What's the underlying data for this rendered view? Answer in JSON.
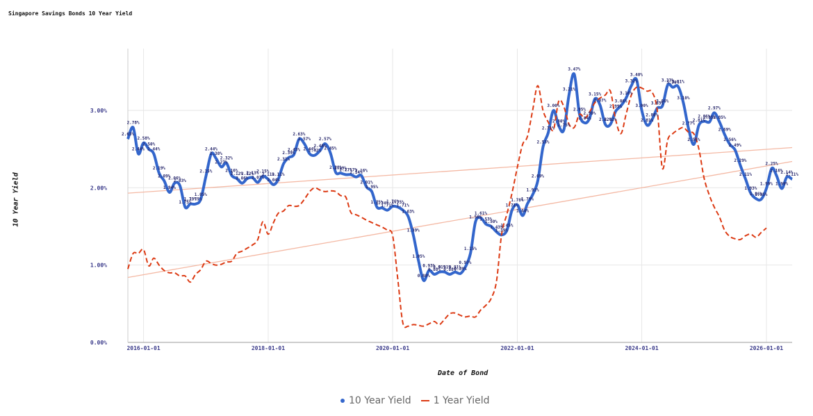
{
  "chart_data": {
    "type": "line",
    "title": "Singapore Savings Bonds 10 Year Yield",
    "xlabel": "Date of Bond",
    "ylabel": "10 Year Yield",
    "x_ticks": [
      "2016-01-01",
      "2018-01-01",
      "2020-01-01",
      "2022-01-01",
      "2024-01-01",
      "2026-01-01"
    ],
    "y_ticks": [
      "0.00%",
      "1.00%",
      "2.00%",
      "3.00%"
    ],
    "ylim": [
      0,
      3.8
    ],
    "xlim": [
      "2015-10-01",
      "2026-06-01"
    ],
    "grid": true,
    "legend_position": "bottom",
    "colors": {
      "ten_year": "#3366cc",
      "one_year": "#dc3912",
      "trend": "#f4b8a3"
    },
    "series": [
      {
        "name": "10 Year Yield",
        "style": "solid",
        "labels": true,
        "points": [
          [
            "2015-10-01",
            2.63
          ],
          [
            "2015-11-01",
            2.78
          ],
          [
            "2015-12-01",
            2.44
          ],
          [
            "2016-01-01",
            2.58
          ],
          [
            "2016-02-01",
            2.5
          ],
          [
            "2016-03-01",
            2.44
          ],
          [
            "2016-04-01",
            2.19
          ],
          [
            "2016-05-01",
            2.09
          ],
          [
            "2016-06-01",
            1.94
          ],
          [
            "2016-07-01",
            2.06
          ],
          [
            "2016-08-01",
            2.03
          ],
          [
            "2016-09-01",
            1.75
          ],
          [
            "2016-10-01",
            1.79
          ],
          [
            "2016-11-01",
            1.79
          ],
          [
            "2016-12-01",
            1.85
          ],
          [
            "2017-01-01",
            2.15
          ],
          [
            "2017-02-01",
            2.44
          ],
          [
            "2017-03-01",
            2.38
          ],
          [
            "2017-04-01",
            2.27
          ],
          [
            "2017-05-01",
            2.32
          ],
          [
            "2017-06-01",
            2.16
          ],
          [
            "2017-07-01",
            2.12
          ],
          [
            "2017-08-01",
            2.06
          ],
          [
            "2017-09-01",
            2.12
          ],
          [
            "2017-10-01",
            2.13
          ],
          [
            "2017-11-01",
            2.07
          ],
          [
            "2017-12-01",
            2.15
          ],
          [
            "2018-01-01",
            2.11
          ],
          [
            "2018-02-01",
            2.04
          ],
          [
            "2018-03-01",
            2.11
          ],
          [
            "2018-04-01",
            2.31
          ],
          [
            "2018-05-01",
            2.39
          ],
          [
            "2018-06-01",
            2.43
          ],
          [
            "2018-07-01",
            2.63
          ],
          [
            "2018-08-01",
            2.57
          ],
          [
            "2018-09-01",
            2.44
          ],
          [
            "2018-10-01",
            2.42
          ],
          [
            "2018-11-01",
            2.48
          ],
          [
            "2018-12-01",
            2.57
          ],
          [
            "2019-01-01",
            2.45
          ],
          [
            "2019-02-01",
            2.2
          ],
          [
            "2019-03-01",
            2.19
          ],
          [
            "2019-04-01",
            2.17
          ],
          [
            "2019-05-01",
            2.17
          ],
          [
            "2019-06-01",
            2.14
          ],
          [
            "2019-07-01",
            2.16
          ],
          [
            "2019-08-01",
            2.01
          ],
          [
            "2019-09-01",
            1.95
          ],
          [
            "2019-10-01",
            1.75
          ],
          [
            "2019-11-01",
            1.74
          ],
          [
            "2019-12-01",
            1.71
          ],
          [
            "2020-01-01",
            1.76
          ],
          [
            "2020-02-01",
            1.75
          ],
          [
            "2020-03-01",
            1.71
          ],
          [
            "2020-04-01",
            1.63
          ],
          [
            "2020-05-01",
            1.39
          ],
          [
            "2020-06-01",
            1.05
          ],
          [
            "2020-07-01",
            0.8
          ],
          [
            "2020-08-01",
            0.93
          ],
          [
            "2020-09-01",
            0.88
          ],
          [
            "2020-10-01",
            0.91
          ],
          [
            "2020-11-01",
            0.91
          ],
          [
            "2020-12-01",
            0.88
          ],
          [
            "2021-01-01",
            0.91
          ],
          [
            "2021-02-01",
            0.89
          ],
          [
            "2021-03-01",
            0.97
          ],
          [
            "2021-04-01",
            1.15
          ],
          [
            "2021-05-01",
            1.56
          ],
          [
            "2021-06-01",
            1.61
          ],
          [
            "2021-07-01",
            1.53
          ],
          [
            "2021-08-01",
            1.5
          ],
          [
            "2021-09-01",
            1.43
          ],
          [
            "2021-10-01",
            1.39
          ],
          [
            "2021-11-01",
            1.45
          ],
          [
            "2021-12-01",
            1.71
          ],
          [
            "2022-01-01",
            1.78
          ],
          [
            "2022-02-01",
            1.64
          ],
          [
            "2022-03-01",
            1.79
          ],
          [
            "2022-04-01",
            1.91
          ],
          [
            "2022-05-01",
            2.09
          ],
          [
            "2022-06-01",
            2.53
          ],
          [
            "2022-07-01",
            2.71
          ],
          [
            "2022-08-01",
            3.0
          ],
          [
            "2022-09-01",
            2.8
          ],
          [
            "2022-10-01",
            2.75
          ],
          [
            "2022-11-01",
            3.21
          ],
          [
            "2022-12-01",
            3.47
          ],
          [
            "2023-01-01",
            2.95
          ],
          [
            "2023-02-01",
            2.84
          ],
          [
            "2023-03-01",
            2.9
          ],
          [
            "2023-04-01",
            3.15
          ],
          [
            "2023-05-01",
            3.07
          ],
          [
            "2023-06-01",
            2.82
          ],
          [
            "2023-07-01",
            2.82
          ],
          [
            "2023-08-01",
            2.99
          ],
          [
            "2023-09-01",
            3.06
          ],
          [
            "2023-10-01",
            3.16
          ],
          [
            "2023-11-01",
            3.32
          ],
          [
            "2023-12-01",
            3.4
          ],
          [
            "2024-01-01",
            3.0
          ],
          [
            "2024-02-01",
            2.81
          ],
          [
            "2024-03-01",
            2.88
          ],
          [
            "2024-04-01",
            3.03
          ],
          [
            "2024-05-01",
            3.06
          ],
          [
            "2024-06-01",
            3.33
          ],
          [
            "2024-07-01",
            3.3
          ],
          [
            "2024-08-01",
            3.31
          ],
          [
            "2024-09-01",
            3.1
          ],
          [
            "2024-10-01",
            2.77
          ],
          [
            "2024-11-01",
            2.56
          ],
          [
            "2024-12-01",
            2.81
          ],
          [
            "2025-01-01",
            2.86
          ],
          [
            "2025-02-01",
            2.85
          ],
          [
            "2025-03-01",
            2.97
          ],
          [
            "2025-04-01",
            2.85
          ],
          [
            "2025-05-01",
            2.69
          ],
          [
            "2025-06-01",
            2.56
          ],
          [
            "2025-07-01",
            2.49
          ],
          [
            "2025-08-01",
            2.29
          ],
          [
            "2025-09-01",
            2.11
          ],
          [
            "2025-10-01",
            1.93
          ],
          [
            "2025-11-01",
            1.86
          ],
          [
            "2025-12-01",
            1.85
          ],
          [
            "2026-01-01",
            1.99
          ],
          [
            "2026-02-01",
            2.25
          ],
          [
            "2026-03-01",
            2.16
          ],
          [
            "2026-04-01",
            1.99
          ],
          [
            "2026-05-01",
            2.14
          ],
          [
            "2026-06-01",
            2.11
          ]
        ]
      },
      {
        "name": "1 Year Yield",
        "style": "dashed",
        "labels": false,
        "points": [
          [
            "2015-10-01",
            0.95
          ],
          [
            "2015-11-01",
            1.15
          ],
          [
            "2015-12-01",
            1.15
          ],
          [
            "2016-01-01",
            1.2
          ],
          [
            "2016-02-01",
            0.99
          ],
          [
            "2016-03-01",
            1.09
          ],
          [
            "2016-04-01",
            1.0
          ],
          [
            "2016-05-01",
            0.93
          ],
          [
            "2016-06-01",
            0.9
          ],
          [
            "2016-07-01",
            0.9
          ],
          [
            "2016-08-01",
            0.86
          ],
          [
            "2016-09-01",
            0.86
          ],
          [
            "2016-10-01",
            0.78
          ],
          [
            "2016-11-01",
            0.88
          ],
          [
            "2016-12-01",
            0.94
          ],
          [
            "2017-01-01",
            1.05
          ],
          [
            "2017-02-01",
            1.02
          ],
          [
            "2017-03-01",
            1.0
          ],
          [
            "2017-04-01",
            1.01
          ],
          [
            "2017-05-01",
            1.04
          ],
          [
            "2017-06-01",
            1.05
          ],
          [
            "2017-07-01",
            1.15
          ],
          [
            "2017-08-01",
            1.18
          ],
          [
            "2017-09-01",
            1.22
          ],
          [
            "2017-10-01",
            1.26
          ],
          [
            "2017-11-01",
            1.33
          ],
          [
            "2017-12-01",
            1.56
          ],
          [
            "2018-01-01",
            1.4
          ],
          [
            "2018-02-01",
            1.55
          ],
          [
            "2018-03-01",
            1.67
          ],
          [
            "2018-04-01",
            1.7
          ],
          [
            "2018-05-01",
            1.77
          ],
          [
            "2018-06-01",
            1.76
          ],
          [
            "2018-07-01",
            1.77
          ],
          [
            "2018-08-01",
            1.85
          ],
          [
            "2018-09-01",
            1.95
          ],
          [
            "2018-10-01",
            2.0
          ],
          [
            "2018-11-01",
            1.97
          ],
          [
            "2018-12-01",
            1.95
          ],
          [
            "2019-01-01",
            1.96
          ],
          [
            "2019-02-01",
            1.95
          ],
          [
            "2019-03-01",
            1.9
          ],
          [
            "2019-04-01",
            1.88
          ],
          [
            "2019-05-01",
            1.68
          ],
          [
            "2019-06-01",
            1.65
          ],
          [
            "2019-07-01",
            1.62
          ],
          [
            "2019-08-01",
            1.58
          ],
          [
            "2019-09-01",
            1.55
          ],
          [
            "2019-10-01",
            1.52
          ],
          [
            "2019-11-01",
            1.49
          ],
          [
            "2019-12-01",
            1.45
          ],
          [
            "2020-01-01",
            1.38
          ],
          [
            "2020-02-01",
            0.8
          ],
          [
            "2020-03-01",
            0.25
          ],
          [
            "2020-04-01",
            0.21
          ],
          [
            "2020-05-01",
            0.23
          ],
          [
            "2020-06-01",
            0.22
          ],
          [
            "2020-07-01",
            0.21
          ],
          [
            "2020-08-01",
            0.24
          ],
          [
            "2020-09-01",
            0.27
          ],
          [
            "2020-10-01",
            0.23
          ],
          [
            "2020-11-01",
            0.3
          ],
          [
            "2020-12-01",
            0.37
          ],
          [
            "2021-01-01",
            0.38
          ],
          [
            "2021-02-01",
            0.35
          ],
          [
            "2021-03-01",
            0.33
          ],
          [
            "2021-04-01",
            0.34
          ],
          [
            "2021-05-01",
            0.33
          ],
          [
            "2021-06-01",
            0.42
          ],
          [
            "2021-07-01",
            0.48
          ],
          [
            "2021-08-01",
            0.57
          ],
          [
            "2021-09-01",
            0.79
          ],
          [
            "2021-10-01",
            1.4
          ],
          [
            "2021-11-01",
            1.66
          ],
          [
            "2021-12-01",
            1.93
          ],
          [
            "2022-01-01",
            2.26
          ],
          [
            "2022-02-01",
            2.56
          ],
          [
            "2022-03-01",
            2.66
          ],
          [
            "2022-04-01",
            3.0
          ],
          [
            "2022-05-01",
            3.32
          ],
          [
            "2022-06-01",
            3.0
          ],
          [
            "2022-07-01",
            2.85
          ],
          [
            "2022-08-01",
            2.75
          ],
          [
            "2022-09-01",
            3.12
          ],
          [
            "2022-10-01",
            3.05
          ],
          [
            "2022-11-01",
            2.82
          ],
          [
            "2022-12-01",
            2.78
          ],
          [
            "2023-01-01",
            2.95
          ],
          [
            "2023-02-01",
            2.9
          ],
          [
            "2023-03-01",
            2.98
          ],
          [
            "2023-04-01",
            3.1
          ],
          [
            "2023-05-01",
            3.16
          ],
          [
            "2023-06-01",
            3.2
          ],
          [
            "2023-07-01",
            3.25
          ],
          [
            "2023-08-01",
            2.88
          ],
          [
            "2023-09-01",
            2.7
          ],
          [
            "2023-10-01",
            2.95
          ],
          [
            "2023-11-01",
            3.2
          ],
          [
            "2023-12-01",
            3.3
          ],
          [
            "2024-01-01",
            3.29
          ],
          [
            "2024-02-01",
            3.25
          ],
          [
            "2024-03-01",
            3.24
          ],
          [
            "2024-04-01",
            3.0
          ],
          [
            "2024-05-01",
            2.25
          ],
          [
            "2024-06-01",
            2.62
          ],
          [
            "2024-07-01",
            2.7
          ],
          [
            "2024-08-01",
            2.75
          ],
          [
            "2024-09-01",
            2.78
          ],
          [
            "2024-10-01",
            2.72
          ],
          [
            "2024-11-01",
            2.7
          ],
          [
            "2024-12-01",
            2.5
          ],
          [
            "2025-01-01",
            2.12
          ],
          [
            "2025-02-01",
            1.9
          ],
          [
            "2025-03-01",
            1.75
          ],
          [
            "2025-04-01",
            1.62
          ],
          [
            "2025-05-01",
            1.45
          ],
          [
            "2025-06-01",
            1.37
          ],
          [
            "2025-07-01",
            1.34
          ],
          [
            "2025-08-01",
            1.33
          ],
          [
            "2025-09-01",
            1.38
          ],
          [
            "2025-10-01",
            1.4
          ],
          [
            "2025-11-01",
            1.36
          ],
          [
            "2025-12-01",
            1.42
          ],
          [
            "2026-01-01",
            1.48
          ]
        ]
      }
    ],
    "trendlines": [
      {
        "series": "10 Year Yield",
        "from": [
          "2015-10-01",
          1.93
        ],
        "to": [
          "2026-06-01",
          2.52
        ]
      },
      {
        "series": "1 Year Yield",
        "from": [
          "2015-10-01",
          0.84
        ],
        "to": [
          "2026-06-01",
          2.34
        ]
      }
    ]
  }
}
